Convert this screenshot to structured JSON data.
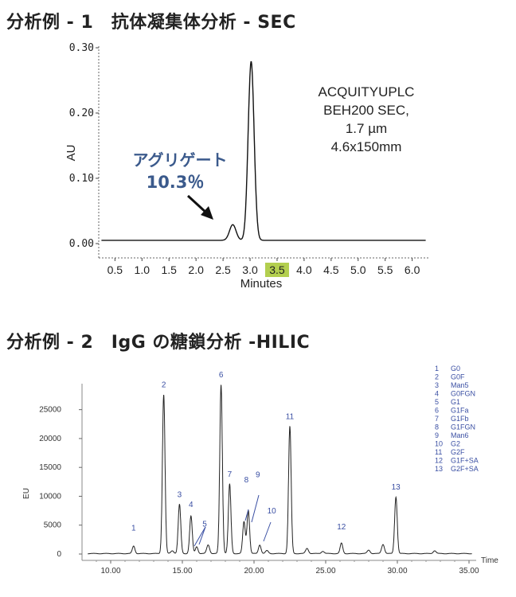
{
  "headings": {
    "ex1": "分析例 - 1　抗体凝集体分析 - SEC",
    "ex2": "分析例 - 2　IgG の糖鎖分析 -HILIC"
  },
  "colors": {
    "line": "#111111",
    "accent_text": "#3b5a8c",
    "highlight": "#b3cf4f",
    "peak_label": "#3a4fa3"
  },
  "chart_data": [
    {
      "type": "line",
      "ylabel": "AU",
      "xlabel": "Minutes",
      "xlim": [
        0.2,
        6.3
      ],
      "ylim": [
        0,
        0.3
      ],
      "x_ticks": [
        "0.5",
        "1.0",
        "1.5",
        "2.0",
        "2.5",
        "3.0",
        "3.5",
        "4.0",
        "4.5",
        "5.0",
        "5.5",
        "6.0"
      ],
      "x_tick_values": [
        0.5,
        1.0,
        1.5,
        2.0,
        2.5,
        3.0,
        3.5,
        4.0,
        4.5,
        5.0,
        5.5,
        6.0
      ],
      "highlighted_tick": "3.5",
      "y_ticks": [
        "0.00",
        "0.10",
        "0.20",
        "0.30"
      ],
      "y_tick_values": [
        0.0,
        0.1,
        0.2,
        0.3
      ],
      "peaks": [
        {
          "x": 2.68,
          "height": 0.024,
          "width": 0.06
        },
        {
          "x": 3.02,
          "height": 0.274,
          "width": 0.055
        }
      ],
      "baseline": 0.005,
      "annotation": {
        "label": "アグリゲート",
        "value": "10.3％"
      },
      "column_info": [
        "ACQUITYUPLC",
        "BEH200 SEC,",
        "1.7 µm",
        "4.6x150mm"
      ]
    },
    {
      "type": "line",
      "ylabel": "EU",
      "xlabel": "Time",
      "xlim": [
        8.0,
        35.5
      ],
      "ylim": [
        -800,
        29500
      ],
      "x_ticks": [
        "10.00",
        "15.00",
        "20.00",
        "25.00",
        "30.00",
        "35.00"
      ],
      "x_tick_values": [
        10,
        15,
        20,
        25,
        30,
        35
      ],
      "y_ticks": [
        "0",
        "5000",
        "10000",
        "15000",
        "20000",
        "25000"
      ],
      "y_tick_values": [
        0,
        5000,
        10000,
        15000,
        20000,
        25000
      ],
      "peaks": [
        {
          "label": "1",
          "x": 11.6,
          "y": 1300
        },
        {
          "label": "2",
          "x": 13.7,
          "y": 27500
        },
        {
          "label": "3",
          "x": 14.8,
          "y": 8500
        },
        {
          "label": "4",
          "x": 15.6,
          "y": 6500
        },
        {
          "label": "5",
          "x": 16.0,
          "y": 1200
        },
        {
          "label": "6",
          "x": 17.7,
          "y": 29200
        },
        {
          "label": "7",
          "x": 18.3,
          "y": 12000
        },
        {
          "label": "8",
          "x": 19.3,
          "y": 5500
        },
        {
          "label": "9",
          "x": 19.6,
          "y": 7500
        },
        {
          "label": "10",
          "x": 20.4,
          "y": 1500
        },
        {
          "label": "11",
          "x": 22.5,
          "y": 22000
        },
        {
          "label": "12",
          "x": 26.1,
          "y": 1800
        },
        {
          "label": "13",
          "x": 29.9,
          "y": 9800
        }
      ],
      "minor_peaks": [
        {
          "x": 14.3,
          "y": 500
        },
        {
          "x": 16.8,
          "y": 1500
        },
        {
          "x": 20.9,
          "y": 500
        },
        {
          "x": 23.7,
          "y": 900
        },
        {
          "x": 24.8,
          "y": 400
        },
        {
          "x": 28.0,
          "y": 600
        },
        {
          "x": 29.0,
          "y": 1600
        },
        {
          "x": 32.6,
          "y": 500
        }
      ],
      "legend": [
        {
          "num": "1",
          "name": "G0"
        },
        {
          "num": "2",
          "name": "G0F"
        },
        {
          "num": "3",
          "name": "Man5"
        },
        {
          "num": "4",
          "name": "G0FGN"
        },
        {
          "num": "5",
          "name": "G1"
        },
        {
          "num": "6",
          "name": "G1Fa"
        },
        {
          "num": "7",
          "name": "G1Fb"
        },
        {
          "num": "8",
          "name": "G1FGN"
        },
        {
          "num": "9",
          "name": "Man6"
        },
        {
          "num": "10",
          "name": "G2"
        },
        {
          "num": "11",
          "name": "G2F"
        },
        {
          "num": "12",
          "name": "G1F+SA"
        },
        {
          "num": "13",
          "name": "G2F+SA"
        }
      ]
    }
  ]
}
